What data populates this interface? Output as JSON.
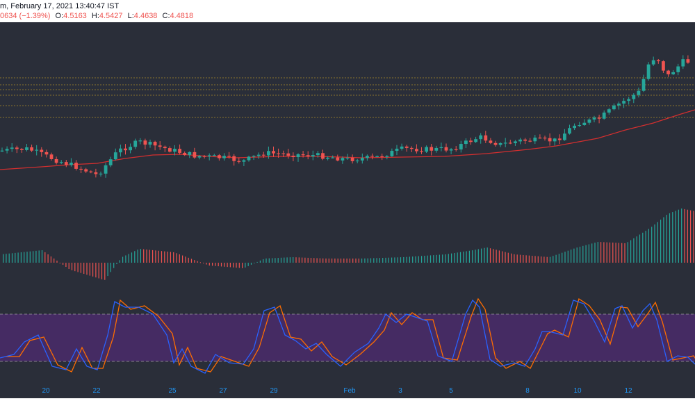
{
  "header": {
    "title_fragment": "m, February 17, 2021 13:40:47 IST",
    "change_fragment": "0634 (−1.39%)",
    "o_label": "O:",
    "o_value": "4.5163",
    "h_label": "H:",
    "h_value": "4.5427",
    "l_label": "L:",
    "l_value": "4.4638",
    "c_label": "C:",
    "c_value": "4.4818"
  },
  "colors": {
    "background": "#2a2e39",
    "up": "#26a69a",
    "down": "#ef5350",
    "ma": "#d32f2f",
    "hist_up": "#26a69a",
    "hist_down": "#ef5350",
    "stoch_k": "#2962ff",
    "stoch_d": "#ff6d00",
    "stoch_band": "#5b2a86",
    "level_line": "#c9a227",
    "tick_label": "#2196f3"
  },
  "chart_data": [
    {
      "type": "candlestick",
      "x_ticks": [
        "20",
        "22",
        "25",
        "27",
        "29",
        "Feb",
        "3",
        "5",
        "8",
        "10",
        "12"
      ],
      "horizontal_levels": 6,
      "moving_average": true
    },
    {
      "type": "bar",
      "role": "histogram-oscillator"
    },
    {
      "type": "line",
      "role": "stochastic-oscillator",
      "series": [
        {
          "name": ""
        },
        {
          "name": ""
        }
      ],
      "band": [
        20,
        80
      ],
      "ylim": [
        0,
        100
      ]
    }
  ]
}
